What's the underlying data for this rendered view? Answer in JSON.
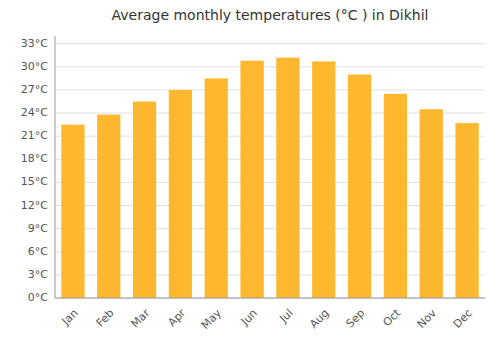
{
  "chart_data": {
    "type": "bar",
    "title": "Average monthly temperatures (°C ) in Dikhil",
    "categories": [
      "Jan",
      "Feb",
      "Mar",
      "Apr",
      "May",
      "Jun",
      "Jul",
      "Aug",
      "Sep",
      "Oct",
      "Nov",
      "Dec"
    ],
    "values": [
      22.5,
      23.8,
      25.5,
      27.0,
      28.5,
      30.8,
      31.2,
      30.7,
      29.0,
      26.5,
      24.5,
      22.7
    ],
    "color": "#FDB830",
    "ylim": [
      0,
      34
    ],
    "yticks": [
      {
        "value": 0,
        "label": "0°C"
      },
      {
        "value": 3,
        "label": "3°C"
      },
      {
        "value": 6,
        "label": "6°C"
      },
      {
        "value": 9,
        "label": "9°C"
      },
      {
        "value": 12,
        "label": "12°C"
      },
      {
        "value": 15,
        "label": "15°C"
      },
      {
        "value": 18,
        "label": "18°C"
      },
      {
        "value": 21,
        "label": "21°C"
      },
      {
        "value": 24,
        "label": "24°C"
      },
      {
        "value": 27,
        "label": "27°C"
      },
      {
        "value": 30,
        "label": "30°C"
      },
      {
        "value": 33,
        "label": "33°C"
      }
    ],
    "grid": true
  }
}
